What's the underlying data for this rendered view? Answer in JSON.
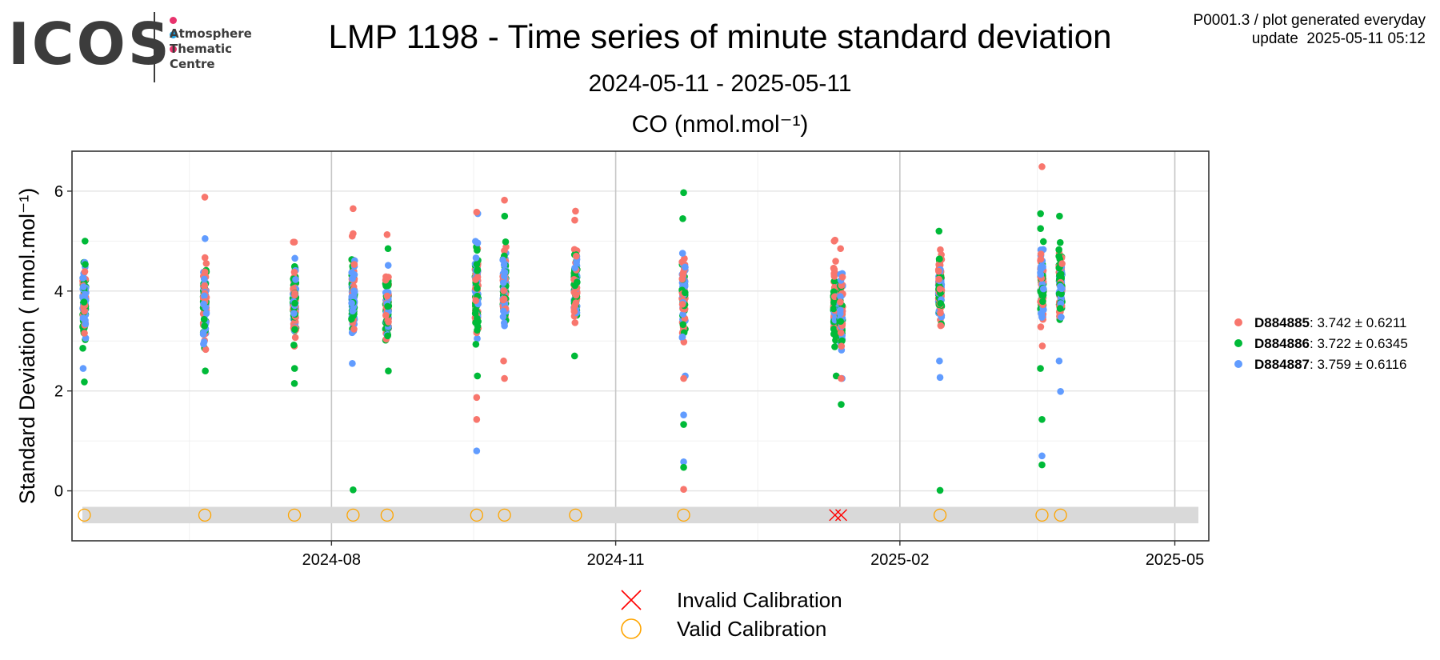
{
  "logo": {
    "word": "ICOS",
    "subtitle_lines": [
      "Atmosphere",
      "Thematic",
      "Centre"
    ],
    "dot_colors": [
      "#e8336d",
      "#1a9fe0",
      "#e8336d"
    ]
  },
  "header": {
    "title": "LMP 1198 - Time series of minute standard deviation",
    "date_range": "2024-05-11 - 2025-05-11",
    "meta_line1": "P0001.3 / plot generated everyday",
    "meta_line2": "update  2025-05-11 05:12"
  },
  "chart_data": {
    "type": "scatter",
    "title": "CO (nmol.mol⁻¹)",
    "ylabel": "Standard Deviation ( nmol.mol⁻¹)",
    "xlabel": "",
    "x_range": [
      "2024-05-09",
      "2025-05-12"
    ],
    "ylim": [
      -1.0,
      6.8
    ],
    "y_ticks": [
      0,
      2,
      4,
      6
    ],
    "x_ticks": [
      "2024-08",
      "2024-11",
      "2025-02",
      "2025-05"
    ],
    "x_tick_dates": [
      "2024-08-01",
      "2024-11-01",
      "2025-02-01",
      "2025-05-01"
    ],
    "grid": true,
    "legend_position": "right",
    "calibration_band": [
      -0.65,
      -0.32
    ],
    "series": [
      {
        "name": "D884885",
        "stats": ": 3.742 ± 0.6211",
        "color": "#f8766d"
      },
      {
        "name": "D884886",
        "stats": ": 3.722 ± 0.6345",
        "color": "#00ba38"
      },
      {
        "name": "D884887",
        "stats": ": 3.759 ± 0.6116",
        "color": "#619cff"
      }
    ],
    "clusters": [
      {
        "date": "2024-05-13",
        "min": 2.45,
        "max": 5.0,
        "outliers": [
          [
            1,
            2.18
          ]
        ]
      },
      {
        "date": "2024-06-21",
        "min": 2.4,
        "max": 5.05,
        "outliers": [
          [
            0,
            5.88
          ]
        ]
      },
      {
        "date": "2024-07-20",
        "min": 2.45,
        "max": 4.98,
        "outliers": [
          [
            1,
            2.15
          ],
          [
            0,
            4.98
          ]
        ]
      },
      {
        "date": "2024-08-08",
        "min": 2.55,
        "max": 5.1,
        "outliers": [
          [
            0,
            5.65
          ],
          [
            1,
            0.02
          ],
          [
            0,
            5.15
          ]
        ]
      },
      {
        "date": "2024-08-19",
        "min": 2.4,
        "max": 4.85,
        "outliers": [
          [
            0,
            5.13
          ]
        ]
      },
      {
        "date": "2024-09-17",
        "min": 2.3,
        "max": 5.55,
        "outliers": [
          [
            0,
            5.58
          ],
          [
            0,
            1.87
          ],
          [
            0,
            1.43
          ],
          [
            2,
            0.8
          ]
        ]
      },
      {
        "date": "2024-09-26",
        "min": 2.6,
        "max": 5.5,
        "outliers": [
          [
            0,
            5.82
          ],
          [
            0,
            2.25
          ]
        ]
      },
      {
        "date": "2024-10-19",
        "min": 2.7,
        "max": 5.42,
        "outliers": [
          [
            0,
            5.6
          ]
        ]
      },
      {
        "date": "2024-11-23",
        "min": 2.3,
        "max": 5.45,
        "outliers": [
          [
            1,
            5.97
          ],
          [
            0,
            2.25
          ],
          [
            2,
            1.52
          ],
          [
            1,
            1.33
          ],
          [
            2,
            0.58
          ],
          [
            1,
            0.47
          ],
          [
            0,
            0.03
          ]
        ]
      },
      {
        "date": "2025-01-11",
        "min": 2.3,
        "max": 5.0,
        "outliers": [
          [
            0,
            5.02
          ]
        ]
      },
      {
        "date": "2025-01-13",
        "min": 2.25,
        "max": 4.85,
        "outliers": [
          [
            1,
            1.73
          ],
          [
            0,
            2.25
          ]
        ]
      },
      {
        "date": "2025-02-14",
        "min": 2.6,
        "max": 5.2,
        "outliers": [
          [
            2,
            2.27
          ],
          [
            1,
            0.01
          ]
        ]
      },
      {
        "date": "2025-03-19",
        "min": 2.45,
        "max": 5.55,
        "outliers": [
          [
            0,
            6.49
          ],
          [
            1,
            1.43
          ],
          [
            2,
            0.7
          ],
          [
            1,
            0.52
          ]
        ]
      },
      {
        "date": "2025-03-25",
        "min": 2.6,
        "max": 5.5,
        "outliers": [
          [
            2,
            1.99
          ]
        ]
      }
    ],
    "calibrations": [
      {
        "date": "2024-05-13",
        "status": "valid"
      },
      {
        "date": "2024-06-21",
        "status": "valid"
      },
      {
        "date": "2024-07-20",
        "status": "valid"
      },
      {
        "date": "2024-08-08",
        "status": "valid"
      },
      {
        "date": "2024-08-19",
        "status": "valid"
      },
      {
        "date": "2024-09-17",
        "status": "valid"
      },
      {
        "date": "2024-09-26",
        "status": "valid"
      },
      {
        "date": "2024-10-19",
        "status": "valid"
      },
      {
        "date": "2024-11-23",
        "status": "valid"
      },
      {
        "date": "2025-01-11",
        "status": "invalid"
      },
      {
        "date": "2025-01-13",
        "status": "invalid"
      },
      {
        "date": "2025-02-14",
        "status": "valid"
      },
      {
        "date": "2025-03-19",
        "status": "valid"
      },
      {
        "date": "2025-03-25",
        "status": "valid"
      }
    ],
    "calibration_legend": [
      {
        "label": "Invalid Calibration",
        "color": "#ff0000",
        "shape": "x"
      },
      {
        "label": "Valid Calibration",
        "color": "#ffa500",
        "shape": "circle"
      }
    ]
  }
}
